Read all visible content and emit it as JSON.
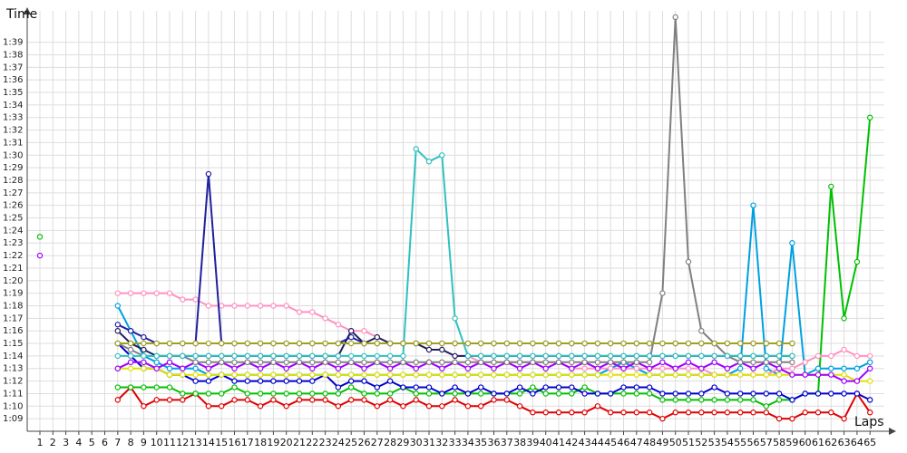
{
  "chart_data": {
    "type": "line",
    "ylabel": "Time",
    "xlabel": "Laps",
    "x": [
      1,
      2,
      3,
      4,
      5,
      6,
      7,
      8,
      9,
      10,
      11,
      12,
      13,
      14,
      15,
      16,
      17,
      18,
      19,
      20,
      21,
      22,
      23,
      24,
      25,
      26,
      27,
      28,
      29,
      30,
      31,
      32,
      33,
      34,
      35,
      36,
      37,
      38,
      39,
      40,
      41,
      42,
      43,
      44,
      45,
      46,
      47,
      48,
      49,
      50,
      51,
      52,
      53,
      54,
      55,
      56,
      57,
      58,
      59,
      60,
      61,
      62,
      63,
      64,
      65
    ],
    "x_tick_labels": [
      "1",
      "2",
      "3",
      "4",
      "5",
      "6",
      "7",
      "8",
      "9",
      "10",
      "11",
      "12",
      "13",
      "14",
      "15",
      "16",
      "17",
      "18",
      "19",
      "20",
      "21",
      "22",
      "23",
      "24",
      "25",
      "26",
      "27",
      "28",
      "29",
      "30",
      "31",
      "32",
      "33",
      "34",
      "35",
      "36",
      "37",
      "38",
      "39",
      "40",
      "41",
      "42",
      "43",
      "44",
      "45",
      "46",
      "47",
      "48",
      "49",
      "50",
      "51",
      "52",
      "53",
      "54",
      "55",
      "56",
      "57",
      "58",
      "59",
      "60",
      "61",
      "62",
      "63",
      "64",
      "65"
    ],
    "y_tick_labels": [
      "1:09",
      "1:10",
      "1:11",
      "1:12",
      "1:13",
      "1:14",
      "1:15",
      "1:16",
      "1:17",
      "1:18",
      "1:19",
      "1:20",
      "1:21",
      "1:22",
      "1:23",
      "1:24",
      "1:25",
      "1:26",
      "1:27",
      "1:28",
      "1:29",
      "1:30",
      "1:31",
      "1:32",
      "1:33",
      "1:34",
      "1:35",
      "1:36",
      "1:37",
      "1:38",
      "1:39"
    ],
    "y_units": "seconds",
    "ylim": [
      68,
      101.5
    ],
    "grid": true,
    "legend": "none",
    "series": [
      {
        "color": "#e00000",
        "values": [
          null,
          null,
          null,
          null,
          null,
          null,
          70.5,
          71.5,
          70,
          70.5,
          70.5,
          70.5,
          71,
          70,
          70,
          70.5,
          70.5,
          70,
          70.5,
          70,
          70.5,
          70.5,
          70.5,
          70,
          70.5,
          70.5,
          70,
          70.5,
          70,
          70.5,
          70,
          70,
          70.5,
          70,
          70,
          70.5,
          70.5,
          70,
          69.5,
          69.5,
          69.5,
          69.5,
          69.5,
          70,
          69.5,
          69.5,
          69.5,
          69.5,
          69,
          69.5,
          69.5,
          69.5,
          69.5,
          69.5,
          69.5,
          69.5,
          69.5,
          69,
          69,
          69.5,
          69.5,
          69.5,
          69,
          71,
          69.5
        ]
      },
      {
        "color": "#00c000",
        "values": [
          83.5,
          null,
          null,
          null,
          null,
          null,
          71.5,
          71.5,
          71.5,
          71.5,
          71.5,
          71,
          71,
          71,
          71,
          71.5,
          71,
          71,
          71,
          71,
          71,
          71,
          71,
          71,
          71.5,
          71,
          71,
          71,
          71.5,
          71,
          71,
          71,
          71,
          71,
          71,
          71,
          71,
          71,
          71.5,
          71,
          71,
          71,
          71.5,
          71,
          71,
          71,
          71,
          71,
          70.5,
          70.5,
          70.5,
          70.5,
          70.5,
          70.5,
          70.5,
          70.5,
          70,
          70.5,
          70.5,
          71,
          71,
          87.5,
          77,
          81.5,
          93
        ]
      },
      {
        "color": "#0000cc",
        "values": [
          null,
          null,
          null,
          null,
          null,
          null,
          75,
          74,
          73,
          73,
          72.5,
          72.5,
          72,
          72,
          72.5,
          72,
          72,
          72,
          72,
          72,
          72,
          72,
          72.5,
          71.5,
          72,
          72,
          71.5,
          72,
          71.5,
          71.5,
          71.5,
          71,
          71.5,
          71,
          71.5,
          71,
          71,
          71.5,
          71,
          71.5,
          71.5,
          71.5,
          71,
          71,
          71,
          71.5,
          71.5,
          71.5,
          71,
          71,
          71,
          71,
          71.5,
          71,
          71,
          71,
          71,
          71,
          70.5,
          71,
          71,
          71,
          71,
          71,
          70.5
        ]
      },
      {
        "color": "#00a0e0",
        "values": [
          null,
          null,
          null,
          null,
          null,
          null,
          78,
          76,
          74,
          73.5,
          73,
          73,
          73,
          72.5,
          72.5,
          72.5,
          72.5,
          72.5,
          72.5,
          72.5,
          72.5,
          72.5,
          72.5,
          72.5,
          72.5,
          72.5,
          72.5,
          72.5,
          72.5,
          72.5,
          72.5,
          72.5,
          72.5,
          72.5,
          72.5,
          72.5,
          72.5,
          72.5,
          72.5,
          72.5,
          72.5,
          72.5,
          72.5,
          72.5,
          73,
          73.5,
          73,
          72.5,
          72.5,
          72.5,
          72.5,
          72.5,
          72.5,
          72.5,
          73,
          86,
          73,
          72.5,
          83,
          72.5,
          73,
          73,
          73,
          73,
          73.5
        ]
      },
      {
        "color": "#ff90c0",
        "values": [
          null,
          null,
          null,
          null,
          null,
          null,
          79,
          79,
          79,
          79,
          79,
          78.5,
          78.5,
          78,
          78,
          78,
          78,
          78,
          78,
          78,
          77.5,
          77.5,
          77,
          76.5,
          76,
          76,
          75.5,
          75,
          75,
          75,
          74.5,
          74.5,
          74,
          74,
          73.5,
          73.5,
          73.5,
          73.5,
          73.5,
          73.5,
          73.5,
          73,
          73,
          73,
          73,
          73,
          73,
          73,
          73,
          73,
          73,
          73,
          72.5,
          72.5,
          72.5,
          72.5,
          72.5,
          73,
          73,
          73.5,
          74,
          74,
          74.5,
          74,
          74
        ]
      },
      {
        "color": "#e0e000",
        "values": [
          null,
          null,
          null,
          null,
          null,
          null,
          73,
          73,
          73,
          73,
          72.5,
          72.5,
          72.5,
          72.5,
          72.5,
          72.5,
          72.5,
          72.5,
          72.5,
          72.5,
          72.5,
          72.5,
          72.5,
          72.5,
          72.5,
          72.5,
          72.5,
          72.5,
          72.5,
          72.5,
          72.5,
          72.5,
          72.5,
          72.5,
          72.5,
          72.5,
          72.5,
          72.5,
          72.5,
          72.5,
          72.5,
          72.5,
          72.5,
          72.5,
          72.5,
          72.5,
          72.5,
          72.5,
          72.5,
          72.5,
          72.5,
          72.5,
          72.5,
          72.5,
          72.5,
          72.5,
          72.5,
          72.5,
          72.5,
          72.5,
          72.5,
          72.5,
          72.5,
          72,
          72
        ]
      },
      {
        "color": "#a000ff",
        "values": [
          82,
          null,
          null,
          null,
          null,
          null,
          73,
          73.5,
          73.5,
          73,
          73.5,
          73,
          73.5,
          73,
          73.5,
          73,
          73.5,
          73,
          73.5,
          73,
          73.5,
          73,
          73.5,
          73,
          73.5,
          73,
          73.5,
          73,
          73.5,
          73,
          73.5,
          73,
          73.5,
          73,
          73.5,
          73,
          73.5,
          73,
          73.5,
          73,
          73.5,
          73,
          73.5,
          73,
          73.5,
          73,
          73.5,
          73,
          73.5,
          73,
          73.5,
          73,
          73.5,
          73,
          73.5,
          73,
          73.5,
          73,
          72.5,
          72.5,
          72.5,
          72.5,
          72,
          72,
          73
        ]
      },
      {
        "color": "#808080",
        "values": [
          null,
          null,
          null,
          null,
          null,
          null,
          75,
          74.5,
          74,
          74,
          74,
          74,
          73.5,
          73.5,
          73.5,
          73.5,
          73.5,
          73.5,
          73.5,
          73.5,
          73.5,
          73.5,
          73.5,
          73.5,
          73.5,
          73.5,
          73.5,
          73.5,
          73.5,
          73.5,
          73.5,
          73.5,
          73.5,
          73.5,
          73.5,
          73.5,
          73.5,
          73.5,
          73.5,
          73.5,
          73.5,
          73.5,
          73.5,
          73.5,
          73.5,
          73.5,
          73.5,
          73.5,
          79,
          101,
          81.5,
          76,
          75,
          74,
          73.5,
          73.5,
          73.5,
          73.5,
          73.5,
          null,
          null,
          null,
          null,
          null,
          null
        ]
      },
      {
        "color": "#202060",
        "values": [
          null,
          null,
          null,
          null,
          null,
          null,
          76,
          75,
          74.5,
          74,
          74,
          74,
          74,
          74,
          74,
          74,
          74,
          74,
          74,
          74,
          74,
          74,
          74,
          74,
          76,
          75,
          75.5,
          75,
          75,
          75,
          74.5,
          74.5,
          74,
          74,
          74,
          74,
          74,
          74,
          74,
          74,
          74,
          74,
          74,
          74,
          74,
          74,
          74,
          74,
          74,
          74,
          74,
          74,
          74,
          74,
          74,
          74,
          74,
          74,
          74,
          null,
          null,
          null,
          null,
          null,
          null
        ]
      },
      {
        "color": "#30c0c0",
        "values": [
          null,
          null,
          null,
          null,
          null,
          null,
          74,
          74,
          74,
          74,
          74,
          74,
          74,
          74,
          74,
          74,
          74,
          74,
          74,
          74,
          74,
          74,
          74,
          74,
          74,
          74,
          74,
          74,
          74,
          90.5,
          89.5,
          90,
          77,
          74,
          74,
          74,
          74,
          74,
          74,
          74,
          74,
          74,
          74,
          74,
          74,
          74,
          74,
          74,
          74,
          74,
          74,
          74,
          74,
          74,
          74,
          74,
          74,
          74,
          74,
          null,
          null,
          null,
          null,
          null,
          null
        ]
      },
      {
        "color": "#2020a0",
        "values": [
          null,
          null,
          null,
          null,
          null,
          null,
          76.5,
          76,
          75.5,
          75,
          75,
          75,
          75,
          88.5,
          75,
          75,
          75,
          75,
          75,
          75,
          75,
          75,
          75,
          75,
          75.5,
          75,
          75,
          75,
          75,
          75,
          75,
          75,
          75,
          75,
          75,
          75,
          75,
          75,
          75,
          75,
          75,
          75,
          75,
          75,
          75,
          75,
          75,
          75,
          75,
          75,
          75,
          75,
          75,
          75,
          75,
          75,
          75,
          75,
          75,
          null,
          null,
          null,
          null,
          null,
          null
        ]
      },
      {
        "color": "#a0a020",
        "values": [
          null,
          null,
          null,
          null,
          null,
          null,
          75,
          75,
          75,
          75,
          75,
          75,
          75,
          75,
          75,
          75,
          75,
          75,
          75,
          75,
          75,
          75,
          75,
          75,
          75,
          75,
          75,
          75,
          75,
          75,
          75,
          75,
          75,
          75,
          75,
          75,
          75,
          75,
          75,
          75,
          75,
          75,
          75,
          75,
          75,
          75,
          75,
          75,
          75,
          75,
          75,
          75,
          75,
          75,
          75,
          75,
          75,
          75,
          75,
          null,
          null,
          null,
          null,
          null,
          null
        ]
      }
    ]
  }
}
